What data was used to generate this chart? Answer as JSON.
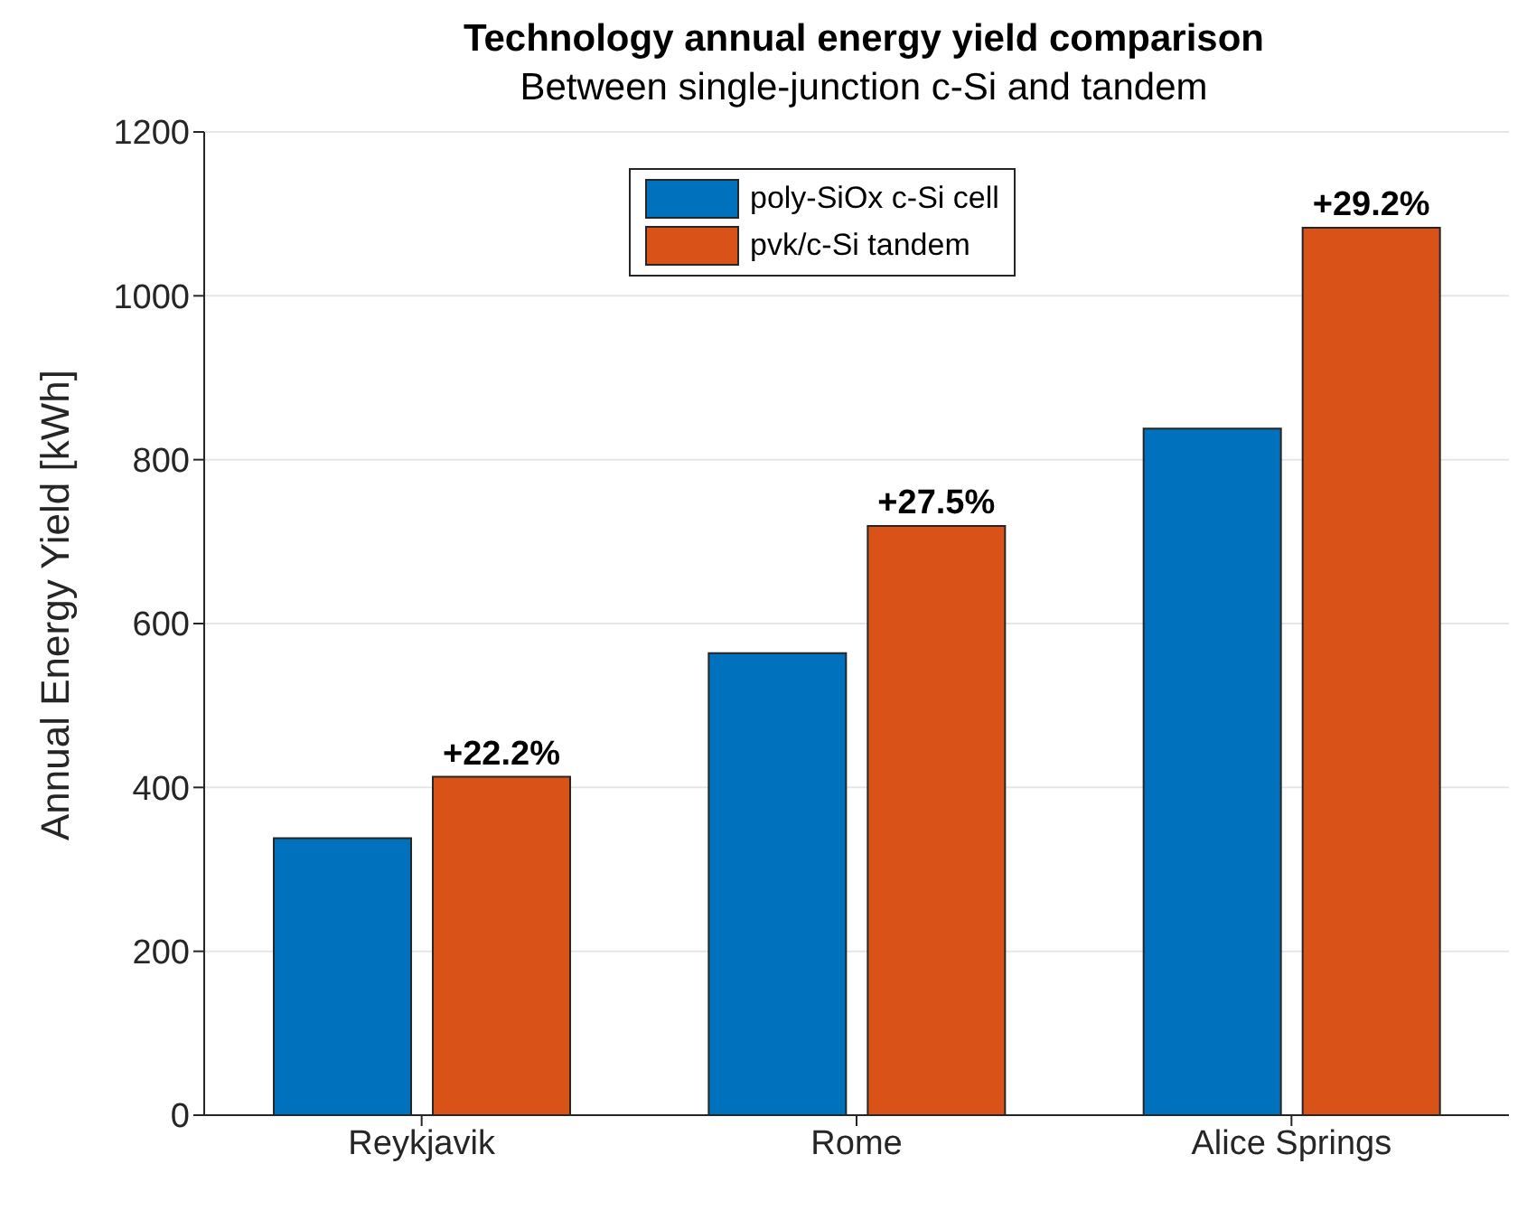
{
  "chart_data": {
    "type": "bar",
    "title": "Technology annual energy yield comparison",
    "subtitle": "Between single-junction c-Si and tandem",
    "ylabel": "Annual Energy Yield [kWh]",
    "categories": [
      "Reykjavik",
      "Rome",
      "Alice Springs"
    ],
    "series": [
      {
        "name": "poly-SiOx c-Si cell",
        "color": "#0072bd",
        "values": [
          338,
          564,
          838
        ]
      },
      {
        "name": "pvk/c-Si tandem",
        "color": "#d95319",
        "values": [
          413,
          719,
          1083
        ]
      }
    ],
    "ylim": [
      0,
      1200
    ],
    "yticks": [
      0,
      200,
      400,
      600,
      800,
      1000,
      1200
    ],
    "grid": "y",
    "legend": "top",
    "annotations": [
      "+22.2%",
      "+27.5%",
      "+29.2%"
    ]
  }
}
